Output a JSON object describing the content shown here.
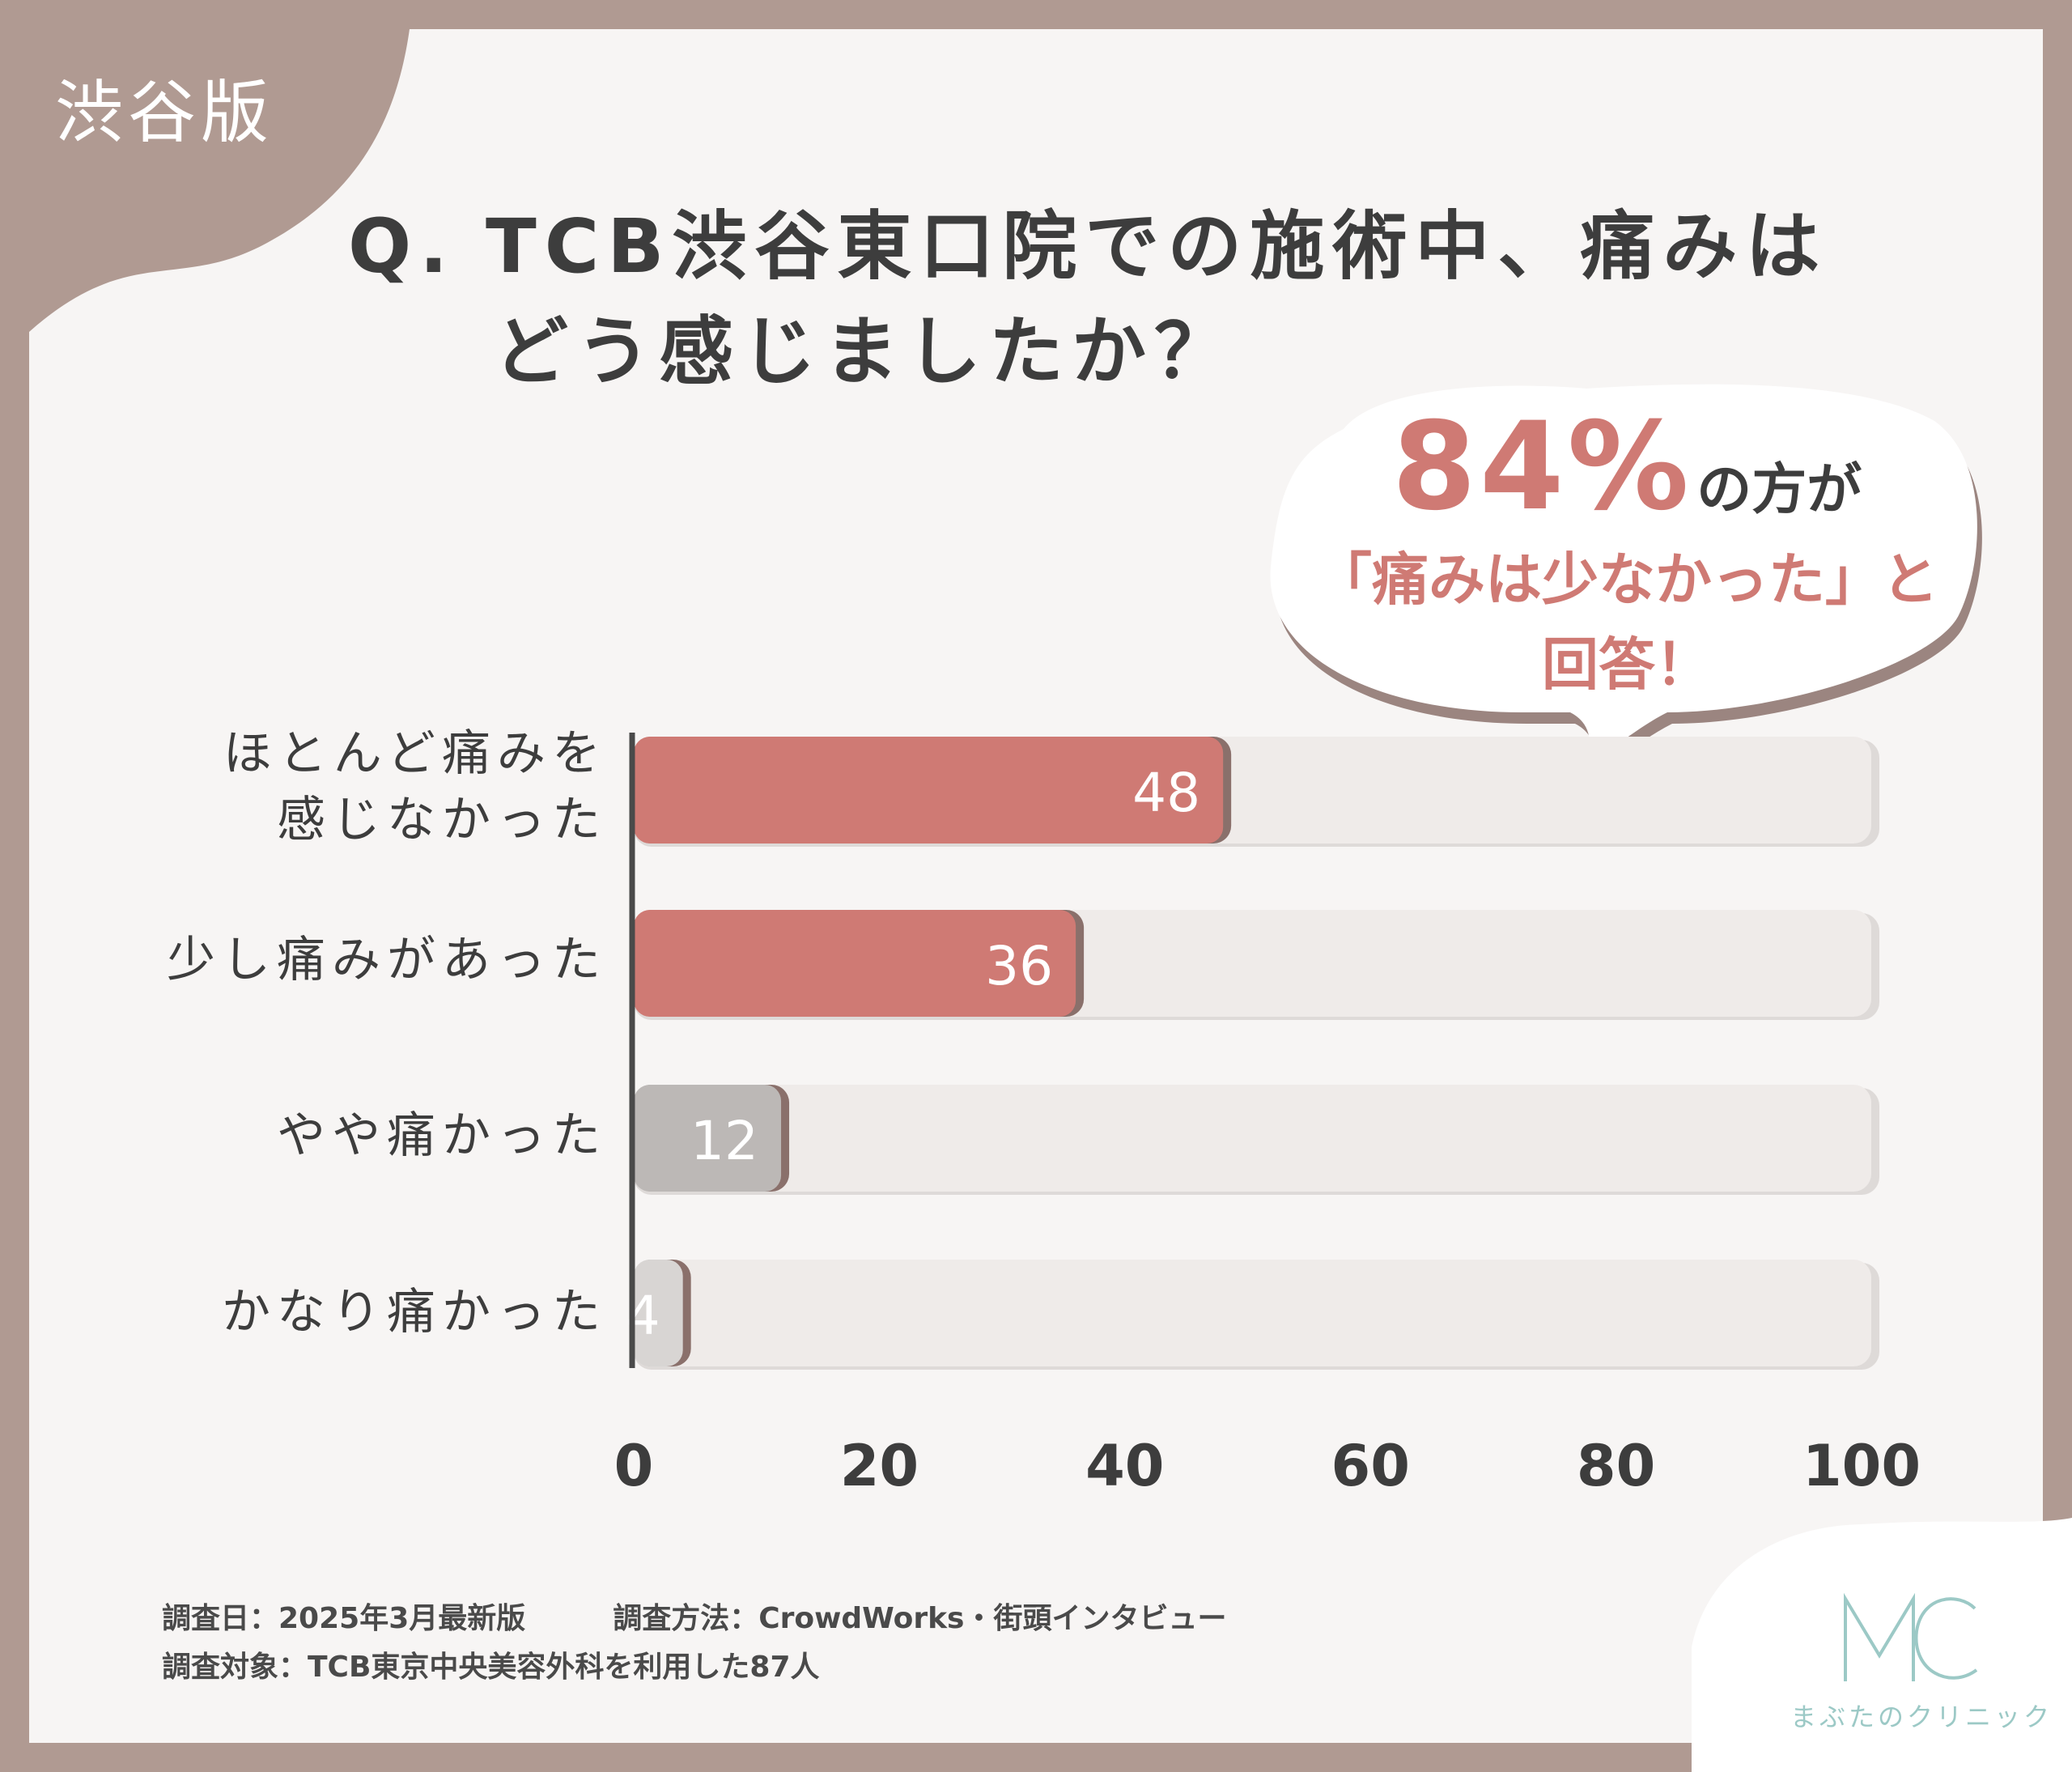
{
  "corner_tab": {
    "label": "渋谷版",
    "color": "#b09a92"
  },
  "question": {
    "prefix": "Q.",
    "line1": "TCB渋谷東口院での施術中、痛みは",
    "line2": "どう感じましたか？"
  },
  "callout": {
    "percent": "84%",
    "suffix": "の方が",
    "line2": "「痛みは少なかった」と",
    "line3": "回答！"
  },
  "chart_data": {
    "type": "bar",
    "orientation": "horizontal",
    "categories": [
      "ほとんど痛みを感じなかった",
      "少し痛みがあった",
      "やや痛かった",
      "かなり痛かった"
    ],
    "category_lines": [
      [
        "ほとんど痛みを",
        "感じなかった"
      ],
      [
        "少し痛みがあった"
      ],
      [
        "やや痛かった"
      ],
      [
        "かなり痛かった"
      ]
    ],
    "values": [
      48,
      36,
      12,
      4
    ],
    "bar_colors": [
      "#cf7a74",
      "#cf7a74",
      "#bcb8b6",
      "#d8d5d3"
    ],
    "track_color": "#efebe9",
    "xlim": [
      0,
      100
    ],
    "x_ticks": [
      0,
      20,
      40,
      60,
      80,
      100
    ],
    "grid": false
  },
  "footer": {
    "line1": "調査日：2025年3月最新版　　　調査方法：CrowdWorks・街頭インタビュー",
    "line2": "調査対象：TCB東京中央美容外科を利用した87人"
  },
  "logo": {
    "mark": "MC",
    "name": "まぶたのクリニック",
    "color": "#9cc9c6"
  }
}
